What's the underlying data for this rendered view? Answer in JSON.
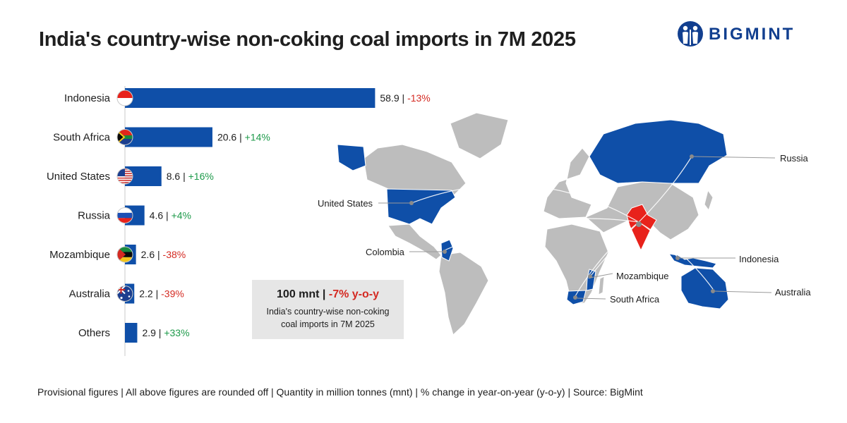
{
  "title": "India's country-wise non-coking coal imports in 7M 2025",
  "logo": {
    "text": "BIGMINT",
    "color": "#123f8f"
  },
  "colors": {
    "bar": "#0f4fa8",
    "positive": "#1d9a4a",
    "negative": "#d42a22",
    "land": "#bdbdbd",
    "importer": "#0f4fa8",
    "india": "#e8221b"
  },
  "chart_data": {
    "type": "bar",
    "orientation": "horizontal",
    "categories": [
      "Indonesia",
      "South Africa",
      "United States",
      "Russia",
      "Mozambique",
      "Australia",
      "Others"
    ],
    "values": [
      58.9,
      20.6,
      8.6,
      4.6,
      2.6,
      2.2,
      2.9
    ],
    "value_labels": [
      "58.9",
      "20.6",
      "8.6",
      "4.6",
      "2.6",
      "2.2",
      "2.9"
    ],
    "yoy_change": [
      "-13%",
      "+14%",
      "+16%",
      "+4%",
      "-38%",
      "-39%",
      "+33%"
    ],
    "flags": [
      "indonesia-flag",
      "south-africa-flag",
      "united-states-flag",
      "russia-flag",
      "mozambique-flag",
      "australia-flag",
      ""
    ],
    "xlim": [
      0,
      60
    ],
    "grid": false
  },
  "map": {
    "labels": [
      "Russia",
      "United States",
      "Colombia",
      "Indonesia",
      "Mozambique",
      "Australia",
      "South Africa"
    ]
  },
  "summary": {
    "value": "100 mnt",
    "separator": " | ",
    "change": "-7% y-o-y",
    "description": "India's country-wise non-coking coal imports in 7M 2025"
  },
  "footnote": "Provisional figures | All above figures are rounded off | Quantity in million tonnes (mnt) | % change in year-on-year (y-o-y) | Source: BigMint"
}
